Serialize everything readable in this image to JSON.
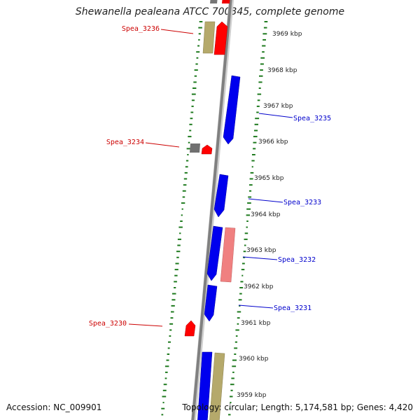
{
  "title": "Shewanella pealeana ATCC 700345, complete genome",
  "footer": {
    "accession": "Accession: NC_009901",
    "stats": "Topology: circular; Length: 5,174,581 bp; Genes: 4,420"
  },
  "colors": {
    "forward_gene": "#ff0000",
    "reverse_gene": "#0000ff",
    "pseudo_reverse": "#f08080",
    "rna": "#b5a96b",
    "other": "#707070",
    "gc_ticks": "#1e7a1e",
    "backbone": "#888888",
    "label_forward": "#cc0000",
    "label_reverse": "#0000cc"
  },
  "scale": {
    "unit": "kbp",
    "ticks": [
      {
        "label": "3969 kbp"
      },
      {
        "label": "3968 kbp"
      },
      {
        "label": "3967 kbp"
      },
      {
        "label": "3966 kbp"
      },
      {
        "label": "3965 kbp"
      },
      {
        "label": "3964 kbp"
      },
      {
        "label": "3963 kbp"
      },
      {
        "label": "3962 kbp"
      },
      {
        "label": "3961 kbp"
      },
      {
        "label": "3960 kbp"
      },
      {
        "label": "3959 kbp"
      }
    ]
  },
  "gene_labels": [
    {
      "text": "Spea_3236",
      "strand": "forward"
    },
    {
      "text": "Spea_3235",
      "strand": "reverse"
    },
    {
      "text": "Spea_3234",
      "strand": "forward"
    },
    {
      "text": "Spea_3233",
      "strand": "reverse"
    },
    {
      "text": "Spea_3232",
      "strand": "reverse"
    },
    {
      "text": "Spea_3231",
      "strand": "reverse"
    },
    {
      "text": "Spea_3230",
      "strand": "forward"
    }
  ]
}
